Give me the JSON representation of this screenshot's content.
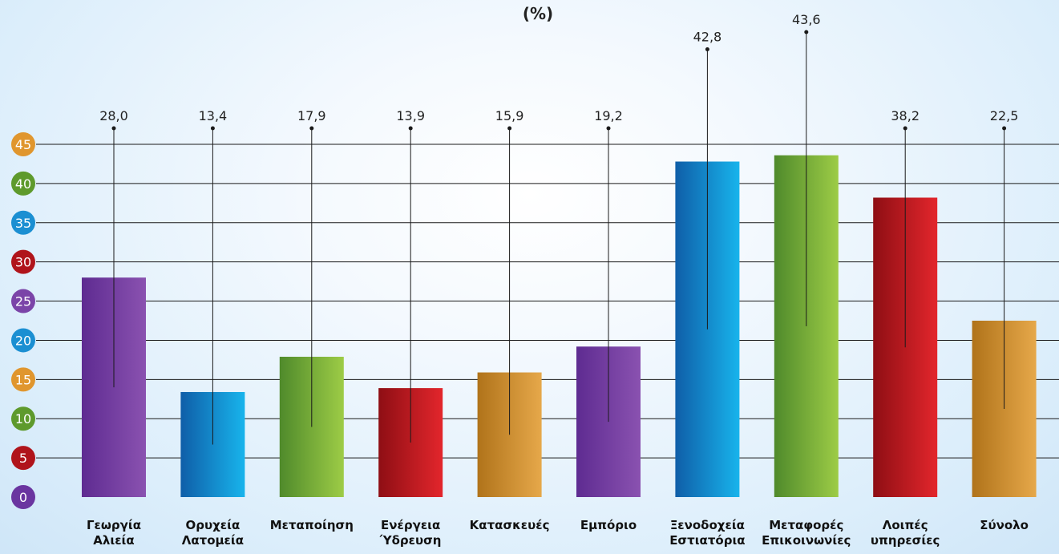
{
  "chart_data": {
    "type": "bar",
    "unit_label": "(%)",
    "ylim": [
      0,
      45
    ],
    "y_ticks": [
      {
        "label": "0",
        "value": 0,
        "color": "#6a35a0"
      },
      {
        "label": "5",
        "value": 5,
        "color": "#b0141b"
      },
      {
        "label": "10",
        "value": 10,
        "color": "#5e9a2c"
      },
      {
        "label": "15",
        "value": 15,
        "color": "#e0962e"
      },
      {
        "label": "20",
        "value": 20,
        "color": "#1b8fd2"
      },
      {
        "label": "25",
        "value": 25,
        "color": "#7b44a8"
      },
      {
        "label": "30",
        "value": 30,
        "color": "#b0141b"
      },
      {
        "label": "35",
        "value": 35,
        "color": "#1b8fd2"
      },
      {
        "label": "40",
        "value": 40,
        "color": "#5e9a2c"
      },
      {
        "label": "45",
        "value": 45,
        "color": "#e0962e"
      }
    ],
    "categories": [
      {
        "lines": [
          "Γεωργία",
          "Αλιεία"
        ],
        "value": 28.0,
        "label": "28,0",
        "colors": [
          "#5e2b91",
          "#8a52b0"
        ]
      },
      {
        "lines": [
          "Ορυχεία",
          "Λατομεία"
        ],
        "value": 13.4,
        "label": "13,4",
        "colors": [
          "#0f5ea8",
          "#18b4ec"
        ]
      },
      {
        "lines": [
          "Μεταποίηση"
        ],
        "value": 17.9,
        "label": "17,9",
        "colors": [
          "#4f8a2b",
          "#9dcc46"
        ]
      },
      {
        "lines": [
          "Ενέργεια",
          "Ύδρευση"
        ],
        "value": 13.9,
        "label": "13,9",
        "colors": [
          "#8e0e14",
          "#e3262c"
        ]
      },
      {
        "lines": [
          "Κατασκευές"
        ],
        "value": 15.9,
        "label": "15,9",
        "colors": [
          "#b0731a",
          "#e6a84a"
        ]
      },
      {
        "lines": [
          "Εμπόριο"
        ],
        "value": 19.2,
        "label": "19,2",
        "colors": [
          "#5e2b91",
          "#8a52b0"
        ]
      },
      {
        "lines": [
          "Ξενοδοχεία",
          "Εστιατόρια"
        ],
        "value": 42.8,
        "label": "42,8",
        "colors": [
          "#0f5ea8",
          "#18b4ec"
        ]
      },
      {
        "lines": [
          "Μεταφορές",
          "Επικοινωνίες"
        ],
        "value": 43.6,
        "label": "43,6",
        "colors": [
          "#4f8a2b",
          "#9dcc46"
        ]
      },
      {
        "lines": [
          "Λοιπές",
          "υπηρεσίες"
        ],
        "value": 38.2,
        "label": "38,2",
        "colors": [
          "#8e0e14",
          "#e3262c"
        ]
      },
      {
        "lines": [
          "Σύνολο"
        ],
        "value": 22.5,
        "label": "22,5",
        "colors": [
          "#b0731a",
          "#e6a84a"
        ]
      }
    ],
    "grid": true,
    "legend": "none"
  }
}
